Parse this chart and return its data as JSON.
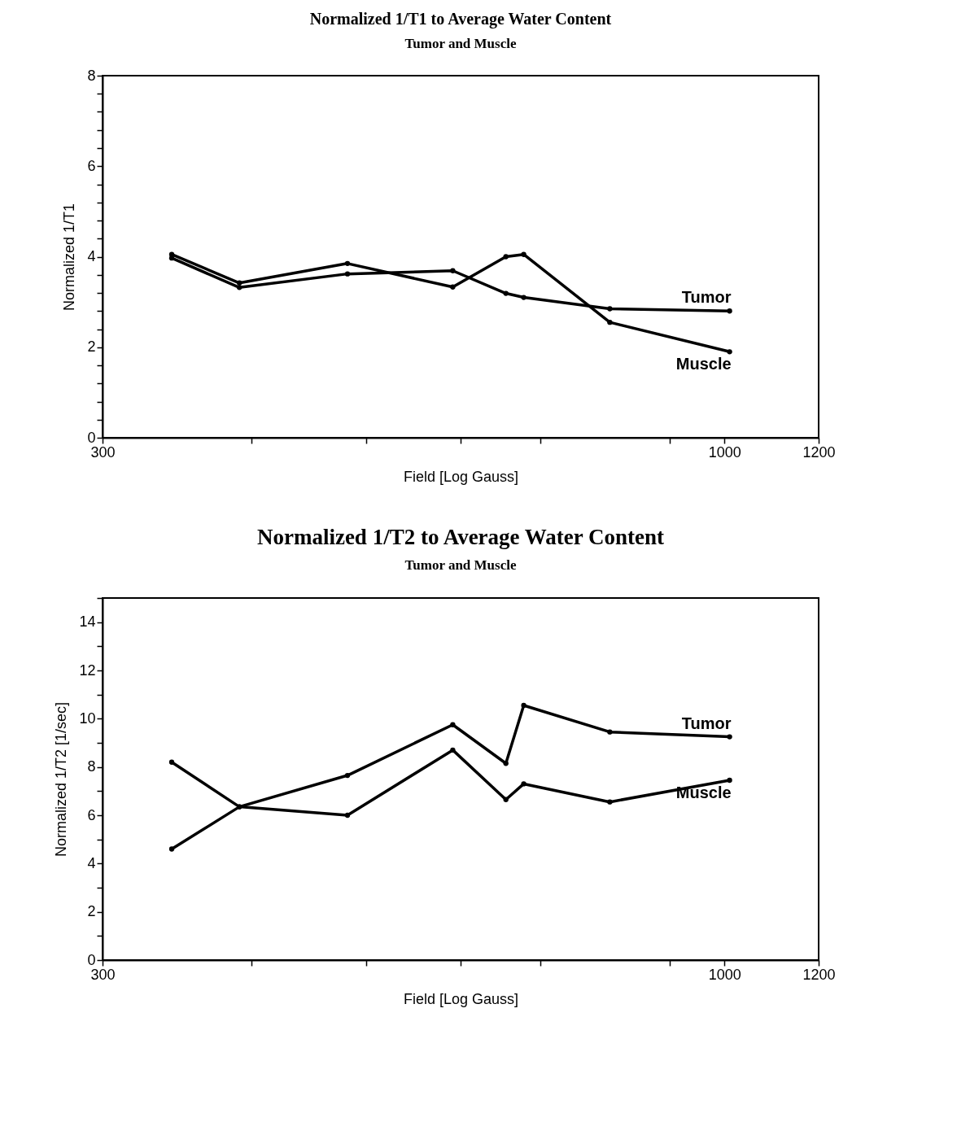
{
  "chart_data": [
    {
      "type": "line",
      "title": "Normalized 1/T1 to Average Water Content",
      "subtitle": "Tumor and Muscle",
      "xlabel": "Field [Log Gauss]",
      "ylabel": "Normalized 1/T1",
      "x": [
        343,
        391,
        482,
        591,
        655,
        678,
        801,
        1010
      ],
      "series": [
        {
          "name": "Tumor",
          "color": "#000000",
          "values": [
            3.97,
            3.32,
            3.62,
            3.69,
            3.19,
            3.1,
            2.85,
            2.8
          ]
        },
        {
          "name": "Muscle",
          "color": "#000000",
          "values": [
            4.05,
            3.42,
            3.85,
            3.33,
            4.0,
            4.05,
            2.55,
            1.9
          ]
        }
      ],
      "log": "x",
      "xlim": [
        300,
        1200
      ],
      "xticks": [
        300,
        {
          "value": 400,
          "label": null
        },
        {
          "value": 500,
          "label": null
        },
        {
          "value": 600,
          "label": null
        },
        {
          "value": 700,
          "label": null
        },
        {
          "value": 900,
          "label": null
        },
        1000,
        1200
      ],
      "ylim": [
        0,
        8
      ],
      "yticks": [
        0,
        {
          "value": 0.4,
          "label": null
        },
        {
          "value": 0.8,
          "label": null
        },
        {
          "value": 1.2,
          "label": null
        },
        {
          "value": 1.6,
          "label": null
        },
        2,
        {
          "value": 2.4,
          "label": null
        },
        {
          "value": 2.8,
          "label": null
        },
        {
          "value": 3.2,
          "label": null
        },
        {
          "value": 3.6,
          "label": null
        },
        4,
        {
          "value": 4.4,
          "label": null
        },
        {
          "value": 4.8,
          "label": null
        },
        {
          "value": 5.2,
          "label": null
        },
        {
          "value": 5.6,
          "label": null
        },
        6,
        {
          "value": 6.4,
          "label": null
        },
        {
          "value": 6.8,
          "label": null
        },
        {
          "value": 7.2,
          "label": null
        },
        {
          "value": 7.6,
          "label": null
        },
        8
      ],
      "marker": "circle",
      "line_style": "solid",
      "grid": false,
      "legend": false
    },
    {
      "type": "line",
      "title": "Normalized 1/T2 to Average Water Content",
      "subtitle": "Tumor and Muscle",
      "xlabel": "Field [Log Gauss]",
      "ylabel": "Normalized 1/T2 [1/sec]",
      "x": [
        343,
        391,
        482,
        591,
        655,
        678,
        801,
        1010
      ],
      "series": [
        {
          "name": "Tumor",
          "color": "#000000",
          "values": [
            4.6,
            6.35,
            7.65,
            9.75,
            8.15,
            10.55,
            9.45,
            9.25
          ]
        },
        {
          "name": "Muscle",
          "color": "#000000",
          "values": [
            8.2,
            6.35,
            6.0,
            8.7,
            6.65,
            7.3,
            6.55,
            7.45
          ]
        }
      ],
      "log": "x",
      "xlim": [
        300,
        1200
      ],
      "xticks": [
        300,
        {
          "value": 400,
          "label": null
        },
        {
          "value": 500,
          "label": null
        },
        {
          "value": 600,
          "label": null
        },
        {
          "value": 700,
          "label": null
        },
        {
          "value": 900,
          "label": null
        },
        1000,
        1200
      ],
      "ylim": [
        0,
        15
      ],
      "yticks": [
        0,
        {
          "value": 1,
          "label": null
        },
        2,
        {
          "value": 3,
          "label": null
        },
        4,
        {
          "value": 5,
          "label": null
        },
        6,
        {
          "value": 7,
          "label": null
        },
        8,
        {
          "value": 9,
          "label": null
        },
        10,
        {
          "value": 11,
          "label": null
        },
        12,
        {
          "value": 13,
          "label": null
        },
        14,
        {
          "value": 15,
          "label": null
        }
      ],
      "marker": "circle",
      "line_style": "solid",
      "grid": false,
      "legend": false
    }
  ]
}
